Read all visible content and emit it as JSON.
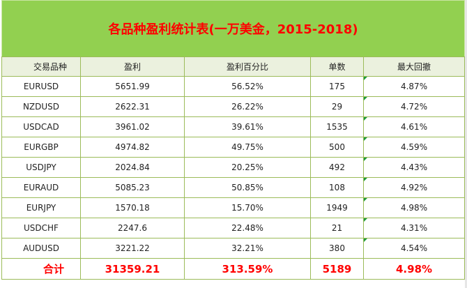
{
  "title": "各品种盈利统计表(一万美金，2015-2018)",
  "headers": [
    "交易品种",
    "盈利",
    "盈利百分比",
    "单数",
    "最大回撤"
  ],
  "rows": [
    [
      "EURUSD",
      "5651.99",
      "56.52%",
      "175",
      "4.87%"
    ],
    [
      "NZDUSD",
      "2622.31",
      "26.22%",
      "29",
      "4.72%"
    ],
    [
      "USDCAD",
      "3961.02",
      "39.61%",
      "1535",
      "4.61%"
    ],
    [
      "EURGBP",
      "4974.82",
      "49.75%",
      "500",
      "4.59%"
    ],
    [
      "USDJPY",
      "2024.84",
      "20.25%",
      "492",
      "4.43%"
    ],
    [
      "EURAUD",
      "5085.23",
      "50.85%",
      "108",
      "4.92%"
    ],
    [
      "EURJPY",
      "1570.18",
      "15.70%",
      "1949",
      "4.98%"
    ],
    [
      "USDCHF",
      "2247.6",
      "22.48%",
      "21",
      "4.31%"
    ],
    [
      "AUDUSD",
      "3221.22",
      "32.21%",
      "380",
      "4.54%"
    ]
  ],
  "total": [
    "合计",
    "31359.21",
    "313.59%",
    "5189",
    "4.98%"
  ],
  "colors": {
    "title_bg": "#92d050",
    "title_text": "#ff0000",
    "header_bg": "#ebf1de",
    "grid_line": "#9bbb59",
    "total_text": "#ff0000",
    "comment_marker": "#1e9c3a"
  }
}
